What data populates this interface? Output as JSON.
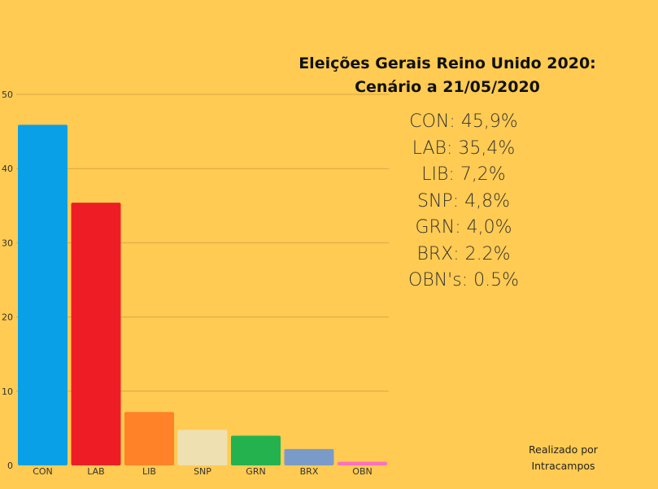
{
  "title": {
    "line1": "Eleições Gerais Reino Unido 2020:",
    "line2": "Cenário a 21/05/2020"
  },
  "results": [
    "CON: 45,9%",
    "LAB: 35,4%",
    "LIB: 7,2%",
    "SNP: 4,8%",
    "GRN: 4,0%",
    "BRX: 2.2%",
    "OBN's: 0.5%"
  ],
  "credit": {
    "line1": "Realizado por",
    "line2": "Intracampos"
  },
  "colors": {
    "background": "#FFCB52",
    "gridline": "#D9A64A",
    "CON": "#0AA0E8",
    "LAB": "#EE1D25",
    "LIB": "#FF8128",
    "SNP": "#EEE0B1",
    "GRN": "#24B24F",
    "BRX": "#7A9BC9",
    "OBN": "#FF6FC2"
  },
  "chart_data": {
    "type": "bar",
    "categories": [
      "CON",
      "LAB",
      "LIB",
      "SNP",
      "GRN",
      "BRX",
      "OBN"
    ],
    "values": [
      45.9,
      35.4,
      7.2,
      4.8,
      4.0,
      2.2,
      0.5
    ],
    "yticks": [
      0,
      10,
      20,
      30,
      40,
      50
    ],
    "ylim": [
      0,
      50
    ],
    "grid": true,
    "title": "",
    "xlabel": "",
    "ylabel": ""
  }
}
